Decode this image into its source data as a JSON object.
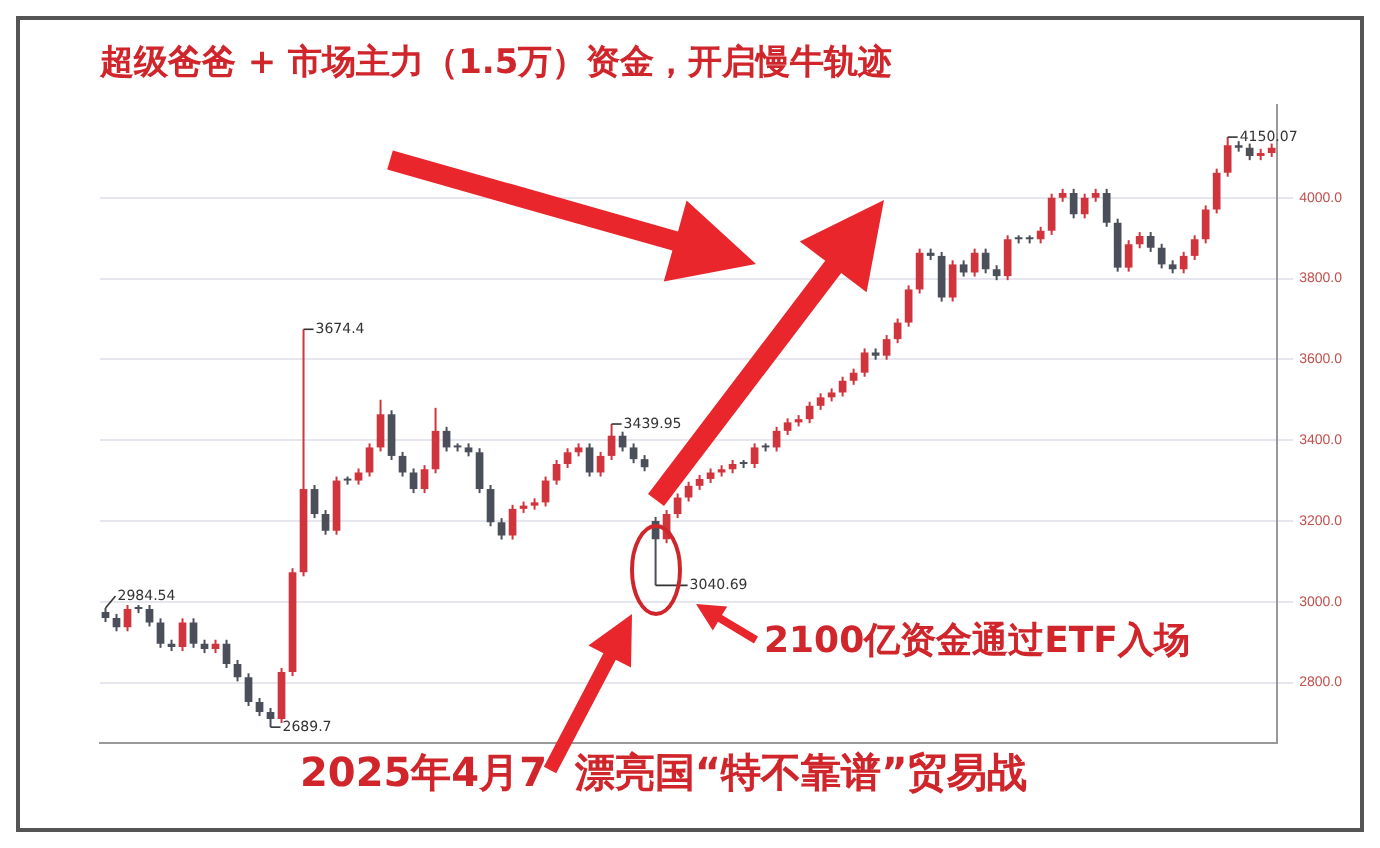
{
  "chart_data": {
    "type": "candlestick",
    "title": "超级爸爸 + 市场主力（1.5万）资金，开启慢牛轨迹",
    "categories": [
      null,
      null,
      null,
      null,
      null,
      null,
      null,
      null,
      null,
      null,
      null,
      null,
      null,
      null,
      null,
      null,
      null,
      null,
      null,
      null,
      null,
      null,
      null,
      null,
      null,
      null,
      null,
      null,
      null,
      null,
      null,
      null,
      null,
      null,
      null,
      null,
      null,
      null,
      null,
      null,
      null,
      null,
      null,
      null,
      null,
      null,
      null,
      null,
      null,
      null,
      null,
      null,
      null,
      null,
      null,
      null,
      null,
      null,
      null,
      null,
      null,
      null,
      null,
      null,
      null,
      null,
      null,
      null,
      null,
      null,
      null,
      null,
      null,
      null,
      null,
      null,
      null,
      null,
      null,
      null,
      null,
      null,
      null,
      null,
      null,
      null,
      null,
      null,
      null,
      null,
      null,
      null,
      null,
      null,
      null,
      null,
      null,
      null,
      null,
      null,
      null,
      null,
      null,
      null,
      null,
      null,
      null
    ],
    "series": [
      {
        "colors": [
          "#4b4f5a",
          "#4b4f5a",
          "#d0343c",
          "#4b4f5a",
          "#4b4f5a",
          "#4b4f5a",
          "#4b4f5a",
          "#d0343c",
          "#4b4f5a",
          "#4b4f5a",
          "#d0343c",
          "#4b4f5a",
          "#4b4f5a",
          "#4b4f5a",
          "#4b4f5a",
          "#4b4f5a",
          "#d0343c",
          "#d0343c",
          "#d0343c",
          "#4b4f5a",
          "#4b4f5a",
          "#d0343c",
          "#4b4f5a",
          "#d0343c",
          "#d0343c",
          "#d0343c",
          "#4b4f5a",
          "#4b4f5a",
          "#4b4f5a",
          "#d0343c",
          "#d0343c",
          "#4b4f5a",
          "#4b4f5a",
          "#4b4f5a",
          "#4b4f5a",
          "#4b4f5a",
          "#4b4f5a",
          "#d0343c",
          "#d0343c",
          "#d0343c",
          "#d0343c",
          "#d0343c",
          "#d0343c",
          "#d0343c",
          "#4b4f5a",
          "#d0343c",
          "#d0343c",
          "#4b4f5a",
          "#4b4f5a",
          "#4b4f5a",
          "#4b4f5a",
          "#d0343c",
          "#d0343c",
          "#d0343c",
          "#d0343c",
          "#d0343c",
          "#d0343c",
          "#d0343c",
          "#4b4f5a",
          "#d0343c",
          "#4b4f5a",
          "#d0343c",
          "#d0343c",
          "#d0343c",
          "#d0343c",
          "#d0343c",
          "#d0343c",
          "#d0343c",
          "#d0343c",
          "#d0343c",
          "#4b4f5a",
          "#d0343c",
          "#d0343c",
          "#d0343c",
          "#d0343c",
          "#4b4f5a",
          "#4b4f5a",
          "#d0343c",
          "#4b4f5a",
          "#d0343c",
          "#4b4f5a",
          "#4b4f5a",
          "#d0343c",
          "#4b4f5a",
          "#4b4f5a",
          "#d0343c",
          "#d0343c",
          "#d0343c",
          "#4b4f5a",
          "#d0343c",
          "#d0343c",
          "#4b4f5a",
          "#4b4f5a",
          "#d0343c",
          "#d0343c",
          "#4b4f5a",
          "#4b4f5a",
          "#4b4f5a",
          "#d0343c",
          "#d0343c",
          "#d0343c",
          "#d0343c",
          "#d0343c",
          "#4b4f5a",
          "#4b4f5a",
          "#d0343c",
          "#d0343c"
        ],
        "ohlc": [
          [
            2975,
            2984.54,
            2950,
            2960
          ],
          [
            2960,
            2970,
            2927,
            2937
          ],
          [
            2937,
            2992,
            2927,
            2982
          ],
          [
            2982,
            2992,
            2972,
            2982
          ],
          [
            2982,
            2992,
            2939,
            2949
          ],
          [
            2949,
            2959,
            2886,
            2896
          ],
          [
            2896,
            2906,
            2878,
            2888
          ],
          [
            2888,
            2959,
            2878,
            2949
          ],
          [
            2949,
            2959,
            2886,
            2896
          ],
          [
            2896,
            2906,
            2873,
            2883
          ],
          [
            2883,
            2906,
            2873,
            2896
          ],
          [
            2896,
            2906,
            2836,
            2846
          ],
          [
            2846,
            2856,
            2803,
            2813
          ],
          [
            2813,
            2823,
            2742,
            2752
          ],
          [
            2752,
            2762,
            2717,
            2727
          ],
          [
            2727,
            2737,
            2689.7,
            2710
          ],
          [
            2710,
            2836,
            2700,
            2826
          ],
          [
            2826,
            3083,
            2816,
            3073
          ],
          [
            3073,
            3674.4,
            3063,
            3279
          ],
          [
            3279,
            3289,
            3207,
            3217
          ],
          [
            3217,
            3227,
            3166,
            3176
          ],
          [
            3176,
            3310,
            3166,
            3300
          ],
          [
            3300,
            3310,
            3290,
            3300
          ],
          [
            3300,
            3330,
            3290,
            3320
          ],
          [
            3320,
            3392,
            3310,
            3382
          ],
          [
            3382,
            3500,
            3372,
            3464
          ],
          [
            3464,
            3474,
            3351,
            3361
          ],
          [
            3361,
            3371,
            3310,
            3320
          ],
          [
            3320,
            3330,
            3269,
            3279
          ],
          [
            3279,
            3338,
            3269,
            3328
          ],
          [
            3328,
            3480,
            3318,
            3423
          ],
          [
            3423,
            3433,
            3372,
            3382
          ],
          [
            3382,
            3392,
            3372,
            3382
          ],
          [
            3382,
            3392,
            3360,
            3370
          ],
          [
            3370,
            3380,
            3269,
            3279
          ],
          [
            3279,
            3289,
            3187,
            3197
          ],
          [
            3197,
            3207,
            3154,
            3164
          ],
          [
            3164,
            3240,
            3154,
            3230
          ],
          [
            3230,
            3248,
            3220,
            3238
          ],
          [
            3238,
            3256,
            3228,
            3246
          ],
          [
            3246,
            3310,
            3236,
            3300
          ],
          [
            3300,
            3351,
            3290,
            3341
          ],
          [
            3341,
            3380,
            3331,
            3370
          ],
          [
            3370,
            3392,
            3360,
            3382
          ],
          [
            3382,
            3392,
            3310,
            3320
          ],
          [
            3320,
            3371,
            3310,
            3361
          ],
          [
            3361,
            3439.95,
            3351,
            3411
          ],
          [
            3411,
            3421,
            3372,
            3382
          ],
          [
            3382,
            3392,
            3343,
            3353
          ],
          [
            3353,
            3363,
            3323,
            3333
          ],
          [
            3200,
            3210,
            3040.69,
            3155
          ],
          [
            3155,
            3227,
            3145,
            3217
          ],
          [
            3217,
            3268,
            3207,
            3258
          ],
          [
            3258,
            3297,
            3248,
            3287
          ],
          [
            3287,
            3314,
            3277,
            3304
          ],
          [
            3304,
            3330,
            3294,
            3320
          ],
          [
            3320,
            3338,
            3310,
            3328
          ],
          [
            3328,
            3351,
            3318,
            3341
          ],
          [
            3341,
            3351,
            3331,
            3341
          ],
          [
            3341,
            3392,
            3331,
            3382
          ],
          [
            3382,
            3392,
            3372,
            3382
          ],
          [
            3382,
            3433,
            3372,
            3423
          ],
          [
            3423,
            3454,
            3413,
            3444
          ],
          [
            3444,
            3462,
            3434,
            3452
          ],
          [
            3452,
            3495,
            3442,
            3485
          ],
          [
            3485,
            3516,
            3475,
            3506
          ],
          [
            3506,
            3528,
            3496,
            3518
          ],
          [
            3518,
            3557,
            3508,
            3547
          ],
          [
            3547,
            3577,
            3537,
            3567
          ],
          [
            3567,
            3627,
            3557,
            3617
          ],
          [
            3617,
            3627,
            3599,
            3609
          ],
          [
            3609,
            3660,
            3599,
            3650
          ],
          [
            3650,
            3701,
            3640,
            3691
          ],
          [
            3691,
            3783,
            3681,
            3773
          ],
          [
            3773,
            3874,
            3763,
            3864
          ],
          [
            3864,
            3874,
            3846,
            3856
          ],
          [
            3856,
            3866,
            3743,
            3753
          ],
          [
            3753,
            3845,
            3743,
            3835
          ],
          [
            3835,
            3845,
            3805,
            3815
          ],
          [
            3815,
            3874,
            3805,
            3864
          ],
          [
            3864,
            3874,
            3813,
            3823
          ],
          [
            3823,
            3833,
            3796,
            3806
          ],
          [
            3806,
            3907,
            3796,
            3897
          ],
          [
            3897,
            3907,
            3887,
            3897
          ],
          [
            3897,
            3907,
            3887,
            3897
          ],
          [
            3897,
            3928,
            3887,
            3918
          ],
          [
            3918,
            4010,
            3908,
            4000
          ],
          [
            4000,
            4022,
            3990,
            4012
          ],
          [
            4012,
            4022,
            3949,
            3959
          ],
          [
            3959,
            4010,
            3949,
            4000
          ],
          [
            4000,
            4022,
            3990,
            4012
          ],
          [
            4012,
            4022,
            3928,
            3938
          ],
          [
            3938,
            3948,
            3817,
            3827
          ],
          [
            3827,
            3895,
            3817,
            3885
          ],
          [
            3885,
            3915,
            3875,
            3905
          ],
          [
            3905,
            3915,
            3866,
            3876
          ],
          [
            3876,
            3886,
            3825,
            3835
          ],
          [
            3835,
            3845,
            3813,
            3823
          ],
          [
            3823,
            3866,
            3813,
            3856
          ],
          [
            3856,
            3907,
            3846,
            3897
          ],
          [
            3897,
            3981,
            3887,
            3971
          ],
          [
            3971,
            4072,
            3961,
            4062
          ],
          [
            4062,
            4150.07,
            4052,
            4130
          ],
          [
            4130,
            4140,
            4114,
            4124
          ],
          [
            4124,
            4134,
            4093,
            4103
          ],
          [
            4103,
            4121,
            4093,
            4111
          ],
          [
            4111,
            4134,
            4101,
            4124
          ]
        ]
      }
    ],
    "ylim": [
      2650,
      4230
    ],
    "yticks": [
      {
        "value": 2800,
        "label": "2800.0"
      },
      {
        "value": 3000,
        "label": "3000.0"
      },
      {
        "value": 3200,
        "label": "3200.0"
      },
      {
        "value": 3400,
        "label": "3400.0"
      },
      {
        "value": 3600,
        "label": "3600.0"
      },
      {
        "value": 3800,
        "label": "3800.0"
      },
      {
        "value": 4000,
        "label": "4000.0"
      }
    ],
    "grid": "y",
    "legend": false,
    "annotations": [
      "2025年4月7  漂亮国“特不靠谱”贸易战",
      "2100亿资金通过ETF入场",
      "2984.54",
      "2689.7",
      "3674.4",
      "3439.95",
      "3040.69",
      "4150.07"
    ]
  }
}
